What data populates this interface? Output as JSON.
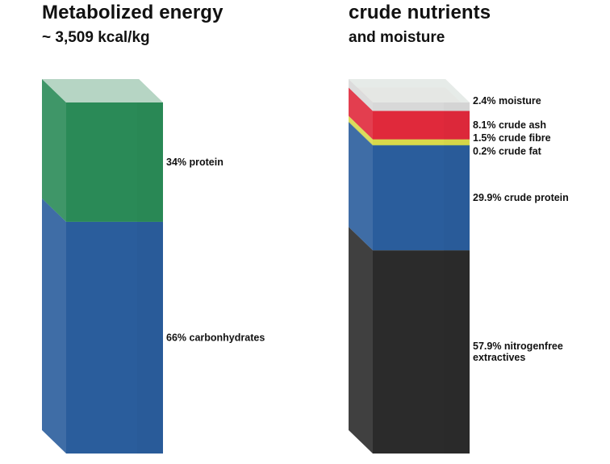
{
  "chart_data": [
    {
      "type": "bar",
      "title": "Metabolized energy",
      "subtitle": "~ 3,509 kcal/kg",
      "unit": "%",
      "stacked": true,
      "series": [
        {
          "name": "66% carbonhydrates",
          "value": 66,
          "color": "#2a5d9c"
        },
        {
          "name": "34% protein",
          "value": 34,
          "color": "#2a8a57"
        }
      ]
    },
    {
      "type": "bar",
      "title": "crude nutrients",
      "subtitle": "and moisture",
      "unit": "%",
      "stacked": true,
      "series": [
        {
          "name": "57.9% nitrogenfree extractives",
          "value": 57.9,
          "color": "#2b2b2b"
        },
        {
          "name": "29.9% crude protein",
          "value": 29.9,
          "color": "#2a5d9c"
        },
        {
          "name": "0.2% crude fat",
          "value": 0.2,
          "color": "#b9cc3e"
        },
        {
          "name": "1.5% crude fibre",
          "value": 1.5,
          "color": "#d9d94a"
        },
        {
          "name": "8.1% crude ash",
          "value": 8.1,
          "color": "#e0293b"
        },
        {
          "name": "2.4% moisture",
          "value": 2.4,
          "color": "#d8d8d8"
        }
      ]
    }
  ]
}
